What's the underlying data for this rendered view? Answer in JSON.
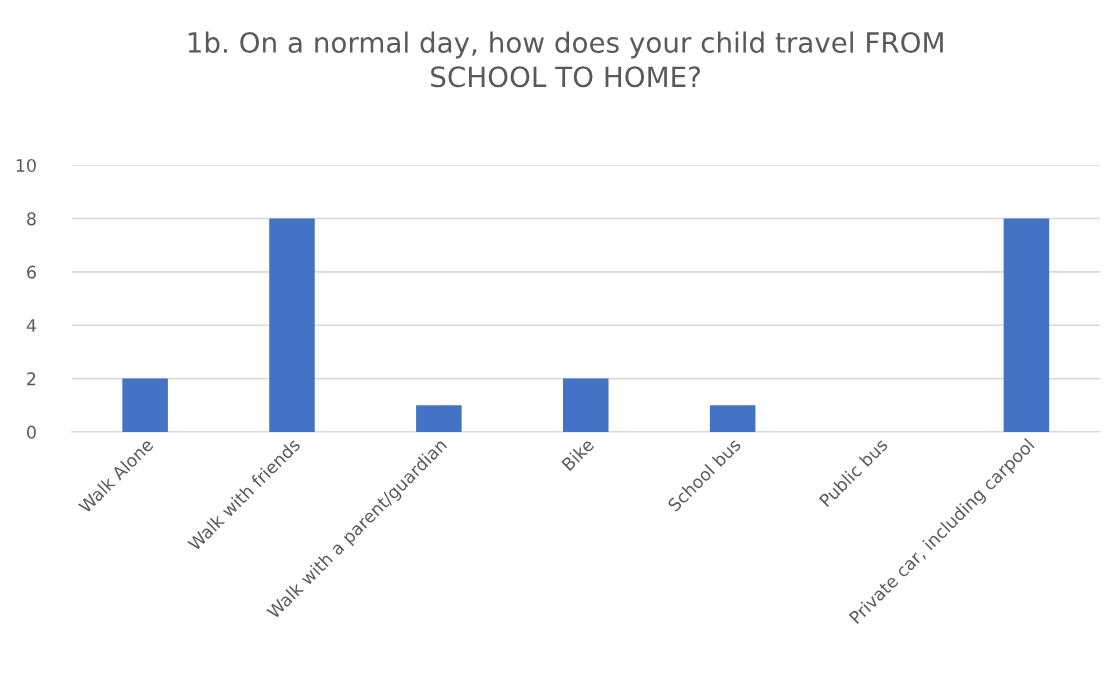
{
  "chart_data": {
    "type": "bar",
    "title": "1b. On a normal day, how does your child travel FROM\nSCHOOL TO HOME?",
    "categories": [
      "Walk Alone",
      "Walk with friends",
      "Walk with a parent/guardian",
      "Bike",
      "School bus",
      "Public bus",
      "Private car, including carpool"
    ],
    "values": [
      2,
      8,
      1,
      2,
      1,
      0,
      8
    ],
    "color": "#4472c4",
    "ylim": [
      0,
      10
    ],
    "yticks": [
      0,
      2,
      4,
      6,
      8,
      10
    ],
    "grid": "y",
    "legend": false
  }
}
